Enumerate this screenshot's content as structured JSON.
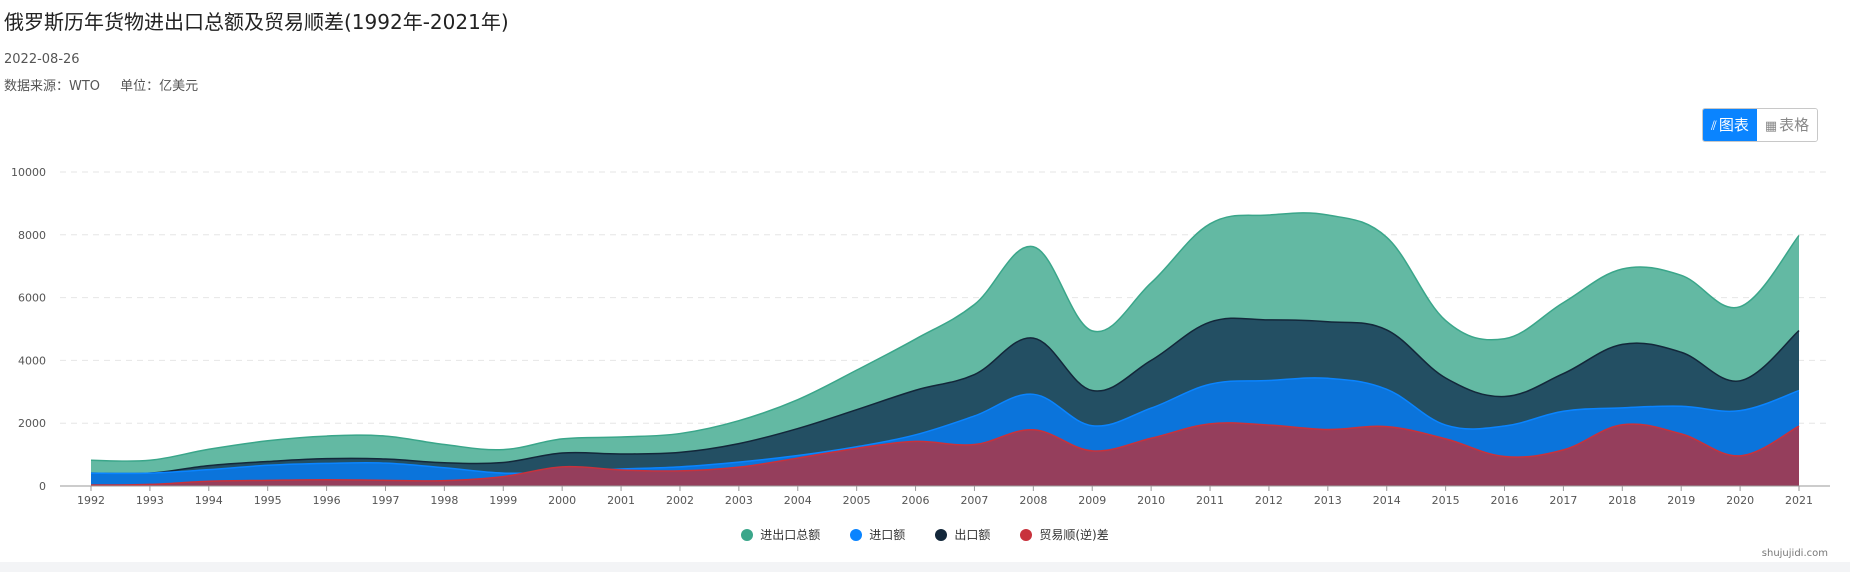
{
  "header": {
    "title": "俄罗斯历年货物进出口总额及贸易顺差(1992年-2021年)",
    "date": "2022-08-26",
    "source": "数据来源：WTO",
    "unit": "单位：亿美元"
  },
  "view_toggle": {
    "chart_label": "图表",
    "table_label": "表格",
    "chart_icon": "chart-icon",
    "table_icon": "table-icon",
    "active": "chart"
  },
  "watermark": "shujujidi.com",
  "colors": {
    "total": "#63b9a3",
    "import": "#0b74db",
    "export": "#234f63",
    "surplus": "#953e5c",
    "legend_total": "#3aa68a",
    "legend_import": "#0a84ff",
    "legend_export": "#13273a",
    "legend_surplus": "#c8323c"
  },
  "chart_data": {
    "type": "area",
    "title": "俄罗斯历年货物进出口总额及贸易顺差(1992年-2021年)",
    "xlabel": "",
    "ylabel": "",
    "ylim": [
      0,
      10000
    ],
    "yticks": [
      "0",
      "2000",
      "4000",
      "6000",
      "8000",
      "10000"
    ],
    "grid": true,
    "legend_position": "bottom-center",
    "categories": [
      "1992",
      "1993",
      "1994",
      "1995",
      "1996",
      "1997",
      "1998",
      "1999",
      "2000",
      "2001",
      "2002",
      "2003",
      "2004",
      "2005",
      "2006",
      "2007",
      "2008",
      "2009",
      "2010",
      "2011",
      "2012",
      "2013",
      "2014",
      "2015",
      "2016",
      "2017",
      "2018",
      "2019",
      "2020",
      "2021"
    ],
    "series": [
      {
        "name": "进出口总额",
        "values": [
          820,
          820,
          1170,
          1440,
          1590,
          1590,
          1320,
          1160,
          1500,
          1560,
          1670,
          2080,
          2750,
          3690,
          4680,
          5780,
          7620,
          4940,
          6470,
          8350,
          8630,
          8630,
          7920,
          5270,
          4690,
          5840,
          6910,
          6710,
          5710,
          7980
        ]
      },
      {
        "name": "进口额",
        "values": [
          410,
          410,
          520,
          660,
          720,
          730,
          580,
          410,
          450,
          540,
          610,
          760,
          970,
          1250,
          1630,
          2230,
          2920,
          1920,
          2480,
          3240,
          3360,
          3430,
          3080,
          1940,
          1910,
          2380,
          2490,
          2540,
          2400,
          3040
        ]
      },
      {
        "name": "出口额",
        "values": [
          410,
          410,
          650,
          780,
          870,
          860,
          740,
          750,
          1050,
          1020,
          1070,
          1350,
          1830,
          2430,
          3050,
          3550,
          4710,
          3040,
          4000,
          5220,
          5290,
          5230,
          4970,
          3440,
          2850,
          3580,
          4510,
          4260,
          3350,
          4950
        ]
      },
      {
        "name": "贸易顺(逆)差",
        "values": [
          30,
          50,
          150,
          180,
          200,
          180,
          170,
          300,
          610,
          510,
          480,
          600,
          890,
          1200,
          1420,
          1320,
          1790,
          1120,
          1520,
          1980,
          1940,
          1800,
          1890,
          1500,
          940,
          1150,
          1950,
          1660,
          960,
          1910
        ]
      }
    ]
  }
}
